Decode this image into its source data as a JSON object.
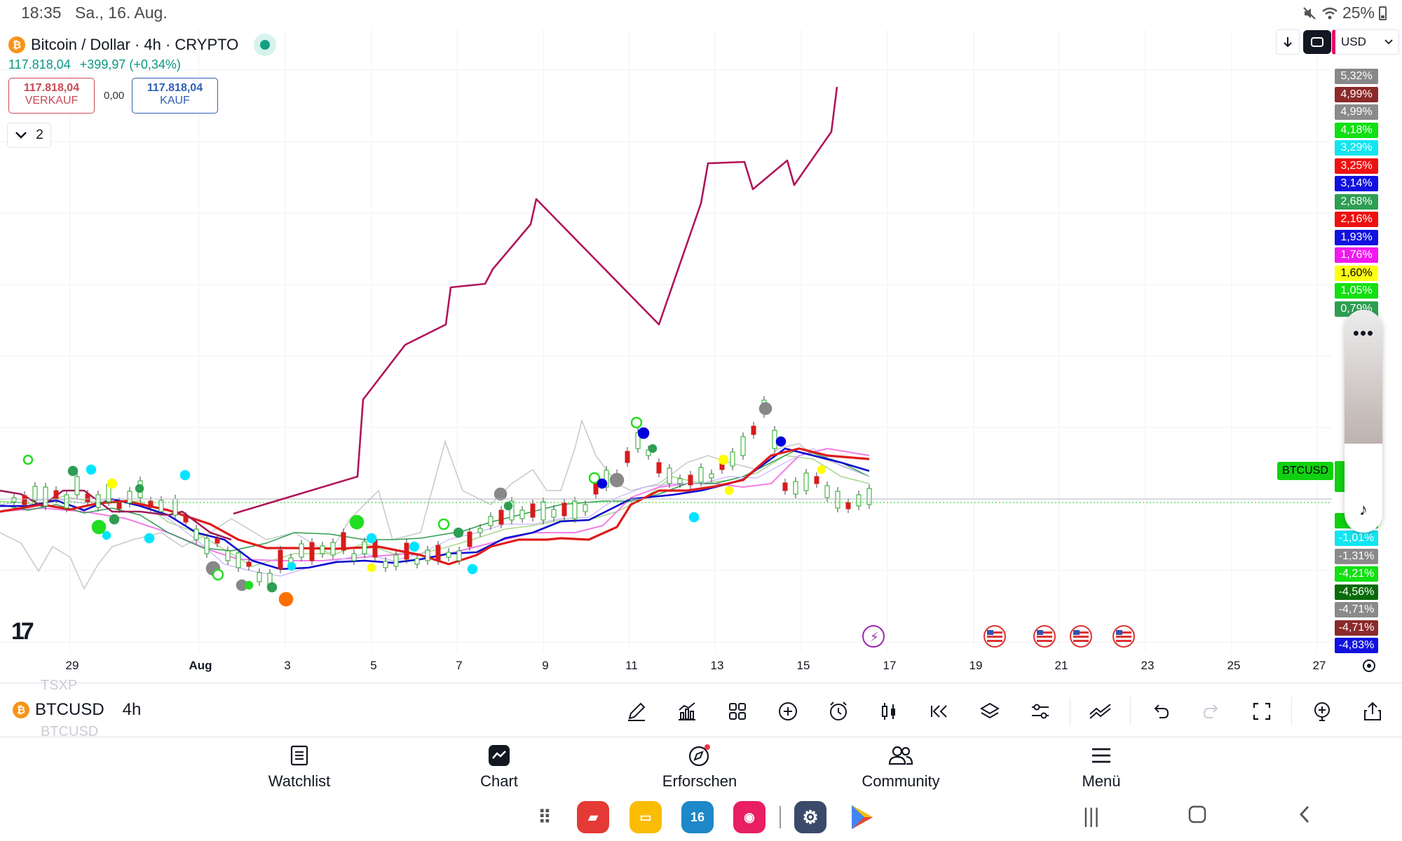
{
  "status_bar": {
    "time": "18:35",
    "date": "Sa., 16. Aug.",
    "battery": "25%",
    "icons": [
      "mute-icon",
      "wifi-icon",
      "battery-icon"
    ]
  },
  "symbol": {
    "title": "Bitcoin / Dollar · 4h · CRYPTO",
    "price": "117.818,04",
    "change": "+399,97 (+0,34%)",
    "sell_value": "117.818,04",
    "sell_label": "VERKAUF",
    "spread": "0,00",
    "buy_value": "117.818,04",
    "buy_label": "KAUF",
    "indicator_count": "2"
  },
  "top_right": {
    "currency": "USD"
  },
  "price_scale": [
    {
      "label": "5,32%",
      "bg": "#888888",
      "fg": "#ffffff"
    },
    {
      "label": "4,99%",
      "bg": "#8b2a2a",
      "fg": "#ffffff"
    },
    {
      "label": "4,99%",
      "bg": "#8a8a8a",
      "fg": "#ffffff"
    },
    {
      "label": "4,18%",
      "bg": "#12e012",
      "fg": "#ffffff"
    },
    {
      "label": "3,29%",
      "bg": "#12e5f0",
      "fg": "#ffffff"
    },
    {
      "label": "3,25%",
      "bg": "#ee1111",
      "fg": "#ffffff"
    },
    {
      "label": "3,14%",
      "bg": "#1111e0",
      "fg": "#ffffff"
    },
    {
      "label": "2,68%",
      "bg": "#2e9e52",
      "fg": "#ffffff"
    },
    {
      "label": "2,16%",
      "bg": "#ee1111",
      "fg": "#ffffff"
    },
    {
      "label": "1,93%",
      "bg": "#1111e0",
      "fg": "#ffffff"
    },
    {
      "label": "1,76%",
      "bg": "#f019f0",
      "fg": "#ffffff"
    },
    {
      "label": "1,60%",
      "bg": "#ffff12",
      "fg": "#000000"
    },
    {
      "label": "1,05%",
      "bg": "#12e012",
      "fg": "#ffffff"
    },
    {
      "label": "0,79%",
      "bg": "#2e9e52",
      "fg": "#ffffff"
    }
  ],
  "price_scale_low": [
    {
      "label": "-1,01%",
      "bg": "#12e5f0",
      "fg": "#ffffff"
    },
    {
      "label": "-1,31%",
      "bg": "#8a8a8a",
      "fg": "#ffffff"
    },
    {
      "label": "-4,21%",
      "bg": "#12e012",
      "fg": "#ffffff"
    },
    {
      "label": "-4,56%",
      "bg": "#0a6b0a",
      "fg": "#ffffff"
    },
    {
      "label": "-4,71%",
      "bg": "#8a8a8a",
      "fg": "#ffffff"
    },
    {
      "label": "-4,71%",
      "bg": "#8b2a2a",
      "fg": "#ffffff"
    },
    {
      "label": "-4,83%",
      "bg": "#1111e0",
      "fg": "#ffffff"
    }
  ],
  "btc_tag": "BTCUSD",
  "time_axis": [
    "29",
    "Aug",
    "3",
    "5",
    "7",
    "9",
    "11",
    "13",
    "15",
    "17",
    "19",
    "21",
    "23",
    "25",
    "27"
  ],
  "toolbar": {
    "ticker_prev": "TSXP",
    "ticker": "BTCUSD",
    "ticker_next": "BTCUSD",
    "timeframe": "4h",
    "tools": [
      "pencil-icon",
      "indicators-icon",
      "layout-icon",
      "add-icon",
      "alert-icon",
      "candles-icon",
      "replay-icon",
      "layers-icon",
      "settings-icon",
      "compare-icon",
      "undo-icon",
      "redo-icon",
      "fullscreen-icon",
      "add-alert-icon",
      "share-icon"
    ]
  },
  "bottom_nav": [
    {
      "label": "Watchlist",
      "icon": "watchlist-icon"
    },
    {
      "label": "Chart",
      "icon": "chart-icon"
    },
    {
      "label": "Erforschen",
      "icon": "compass-icon"
    },
    {
      "label": "Community",
      "icon": "community-icon"
    },
    {
      "label": "Menü",
      "icon": "menu-icon"
    }
  ],
  "dock": {
    "calendar_day": "16"
  },
  "colors": {
    "up": "#089981",
    "down": "#f23645",
    "purple_line": "#b0145a",
    "grid": "#f0f2f5"
  }
}
